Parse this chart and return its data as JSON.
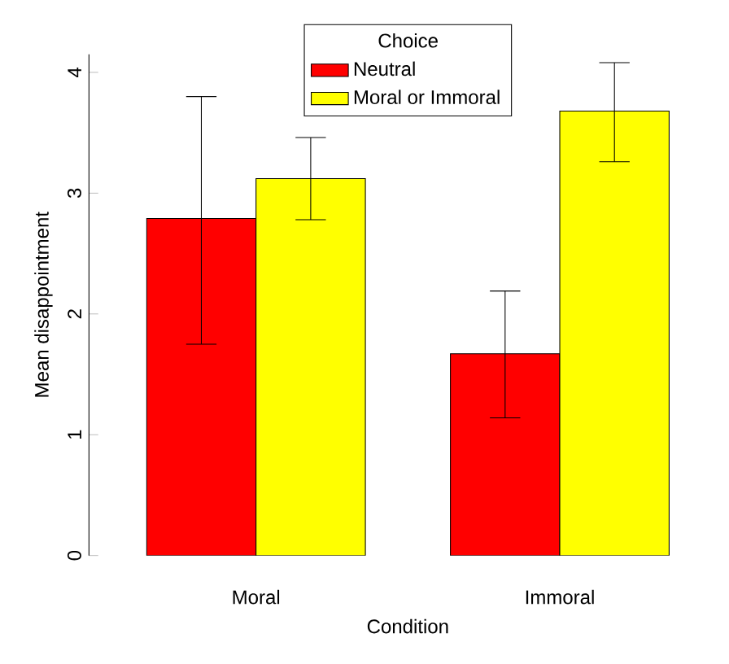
{
  "chart_data": {
    "type": "bar",
    "xlabel": "Condition",
    "ylabel": "Mean disappointment",
    "legend_title": "Choice",
    "categories": [
      "Moral",
      "Immoral"
    ],
    "series": [
      {
        "name": "Neutral",
        "color": "#ff0000",
        "values": [
          2.79,
          1.67
        ],
        "errors": [
          [
            1.75,
            3.8
          ],
          [
            1.14,
            2.19
          ]
        ]
      },
      {
        "name": "Moral or Immoral",
        "color": "#ffff00",
        "values": [
          3.12,
          3.68
        ],
        "errors": [
          [
            2.78,
            3.46
          ],
          [
            3.26,
            4.08
          ]
        ]
      }
    ],
    "ylim": [
      0,
      4.15
    ],
    "yticks": [
      0,
      1,
      2,
      3,
      4
    ],
    "grid": false,
    "legend": "top"
  }
}
